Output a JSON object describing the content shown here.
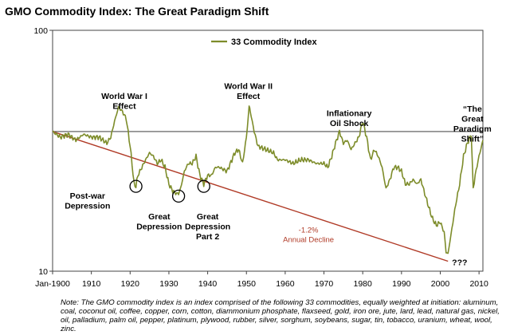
{
  "chart_data": {
    "type": "line",
    "title": "GMO Commodity Index:  The Great Paradigm Shift",
    "y_scale": "log",
    "ylim": [
      10,
      100
    ],
    "y_ticks": [
      "100",
      "10"
    ],
    "xlim": [
      1900,
      2011
    ],
    "x_ticks": [
      "Jan-1900",
      "1910",
      "1920",
      "1930",
      "1940",
      "1950",
      "1960",
      "1970",
      "1980",
      "1990",
      "2000",
      "2010"
    ],
    "x_tick_values": [
      1900,
      1910,
      1920,
      1930,
      1940,
      1950,
      1960,
      1970,
      1980,
      1990,
      2000,
      2010
    ],
    "grid": false,
    "legend_placement": "top-center",
    "colors": {
      "series": "#7d8c2a",
      "trend": "#b03a26",
      "reference": "#222222"
    },
    "series": [
      {
        "name": "33 Commodity Index",
        "x": [
          1900,
          1902,
          1904,
          1906,
          1908,
          1910,
          1912,
          1914,
          1915,
          1916,
          1917,
          1918,
          1919,
          1920,
          1920.5,
          1921,
          1921.5,
          1922,
          1924,
          1925,
          1926,
          1927,
          1928,
          1929,
          1930,
          1931,
          1932,
          1932.5,
          1933,
          1934,
          1935,
          1936,
          1937,
          1938,
          1939,
          1940,
          1941,
          1942,
          1943,
          1945,
          1947,
          1948,
          1949,
          1950,
          1950.7,
          1951,
          1952,
          1953,
          1955,
          1957,
          1958,
          1960,
          1962,
          1964,
          1966,
          1968,
          1970,
          1971,
          1972,
          1973,
          1974,
          1975,
          1976,
          1977,
          1978,
          1979,
          1980,
          1981,
          1982,
          1983,
          1984,
          1985,
          1986,
          1987,
          1988,
          1989,
          1990,
          1991,
          1992,
          1993,
          1994,
          1995,
          1996,
          1997,
          1998,
          1999,
          2000,
          2001,
          2001.5,
          2002,
          2003,
          2004,
          2005,
          2006,
          2007,
          2008,
          2008.5,
          2009,
          2010,
          2011
        ],
        "values": [
          38,
          36,
          37,
          35,
          37,
          36,
          36,
          34,
          36,
          42,
          48,
          46,
          43,
          33,
          28,
          23,
          22.5,
          25,
          29,
          31,
          30,
          28,
          29,
          27,
          23,
          21.5,
          21,
          21,
          22,
          26,
          28,
          28,
          30,
          25,
          23,
          25,
          25,
          27,
          27,
          26,
          31,
          32,
          28,
          36,
          48,
          46,
          38,
          33,
          32,
          31,
          29,
          29,
          28,
          29,
          29,
          28,
          28,
          27,
          30,
          34,
          38,
          34,
          35,
          32,
          34,
          36,
          42,
          36,
          29,
          32,
          30,
          27,
          22,
          24,
          27,
          27,
          26,
          23,
          23,
          24,
          23,
          24,
          21,
          18.5,
          16.5,
          15.5,
          16,
          14.5,
          12,
          11.8,
          15,
          19,
          23,
          30,
          34,
          37,
          22,
          25,
          30,
          35
        ]
      },
      {
        "name": "",
        "x": [
          1900,
          2002
        ],
        "values": [
          38,
          11
        ]
      }
    ],
    "reference_line_y": 38,
    "annotations": [
      {
        "text": [
          "World War I",
          "Effect"
        ],
        "x": 1918.5,
        "y": 52
      },
      {
        "text": [
          "World War II",
          "Effect"
        ],
        "x": 1950.5,
        "y": 57
      },
      {
        "text": [
          "Inflationary",
          "Oil Shock"
        ],
        "x": 1976.5,
        "y": 44
      },
      {
        "text": [
          "“The",
          "Great",
          "Paradigm",
          "Shift”"
        ],
        "x": 2008.3,
        "y": 46
      },
      {
        "text": [
          "Post-war",
          "Depression"
        ],
        "x": 1909,
        "y": 20
      },
      {
        "text": [
          "Great",
          "Depression"
        ],
        "x": 1927.5,
        "y": 16.4
      },
      {
        "text": [
          "Great",
          "Depression",
          "Part 2"
        ],
        "x": 1940,
        "y": 16.4
      },
      {
        "text": [
          "???"
        ],
        "x": 2005,
        "y": 10.6
      }
    ],
    "trend_label": {
      "text": [
        "-1.2%",
        "Annual Decline"
      ],
      "x": 1966,
      "y": 14.5
    },
    "circles": [
      {
        "x": 1921.5,
        "y": 22.5
      },
      {
        "x": 1932.5,
        "y": 20.5
      },
      {
        "x": 1939,
        "y": 22.5
      }
    ],
    "note": "Note: The GMO commodity index is an index comprised of the following 33 commodities, equally weighted at initiation:  aluminum, coal, coconut oil, coffee, copper, corn, cotton, diammonium phosphate, flaxseed, gold, iron ore, jute, lard, lead, natural gas, nickel, oil, palladium, palm oil, pepper, platinum, plywood, rubber, silver, sorghum, soybeans, sugar, tin, tobacco, uranium, wheat, wool, zinc."
  }
}
